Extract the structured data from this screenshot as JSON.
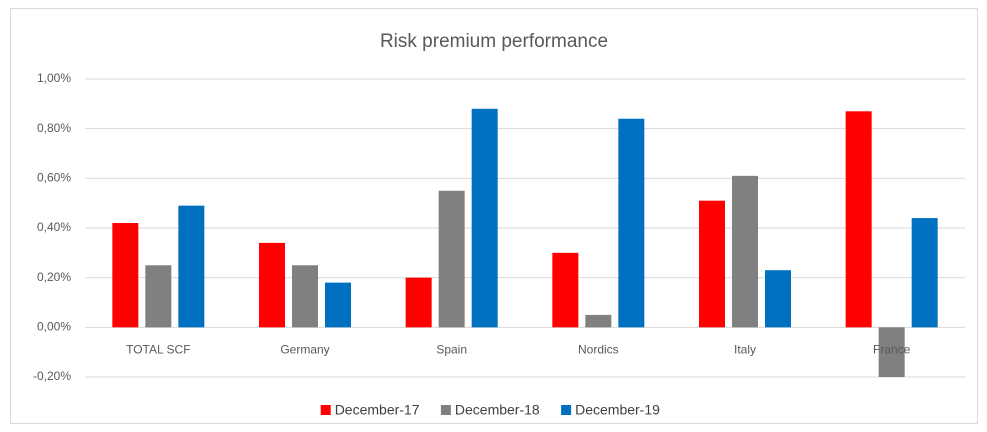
{
  "chart_data": {
    "type": "bar",
    "title": "Risk premium performance",
    "categories": [
      "TOTAL SCF",
      "Germany",
      "Spain",
      "Nordics",
      "Italy",
      "France"
    ],
    "series": [
      {
        "name": "December-17",
        "color": "#ff0000",
        "values": [
          0.42,
          0.34,
          0.2,
          0.3,
          0.51,
          0.87
        ]
      },
      {
        "name": "December-18",
        "color": "#808080",
        "values": [
          0.25,
          0.25,
          0.55,
          0.05,
          0.61,
          -0.2
        ]
      },
      {
        "name": "December-19",
        "color": "#0070c0",
        "values": [
          0.49,
          0.18,
          0.88,
          0.84,
          0.23,
          0.44
        ]
      }
    ],
    "ylim": [
      -0.2,
      1.0
    ],
    "yticks": [
      {
        "value": -0.2,
        "label": "-0,20%"
      },
      {
        "value": 0,
        "label": "0,00%"
      },
      {
        "value": 0.2,
        "label": "0,20%"
      },
      {
        "value": 0.4,
        "label": "0,40%"
      },
      {
        "value": 0.6,
        "label": "0,60%"
      },
      {
        "value": 0.8,
        "label": "0,80%"
      },
      {
        "value": 1.0,
        "label": "1,00%"
      }
    ],
    "grid": true,
    "legend": "bottom"
  }
}
